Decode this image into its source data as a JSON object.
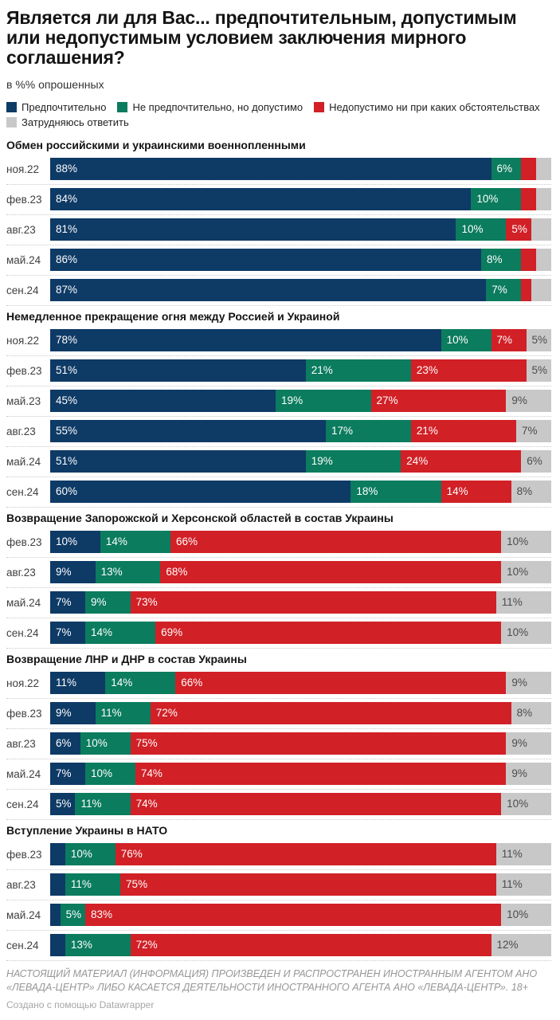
{
  "header": {
    "title": "Является ли для Вас... предпочтительным, допустимым или недопустимым условием заключения мирного соглашения?",
    "subtitle": "в %% опрошенных"
  },
  "legend": {
    "items": [
      {
        "key": "preferable",
        "label": "Предпочтительно",
        "color": "#0e3a66"
      },
      {
        "key": "acceptable",
        "label": "Не предпочтительно, но допустимо",
        "color": "#0b7c5e"
      },
      {
        "key": "unacceptable",
        "label": "Недопустимо ни при каких обстоятельствах",
        "color": "#d12026"
      },
      {
        "key": "dont-know",
        "label": "Затрудняюсь ответить",
        "color": "#c8c8c8"
      }
    ]
  },
  "chart_data": {
    "type": "bar",
    "variant": "horizontal-stacked-100",
    "unit": "%",
    "xlim": [
      0,
      100
    ],
    "grid": "dotted-row-separators",
    "legend_position": "top",
    "label_threshold_pct": 5,
    "series_names": [
      "Предпочтительно",
      "Не предпочтительно, но допустимо",
      "Недопустимо ни при каких обстоятельствах",
      "Затрудняюсь ответить"
    ],
    "series_keys": [
      "preferable",
      "acceptable",
      "unacceptable",
      "dont-know"
    ],
    "series_colors": [
      "#0e3a66",
      "#0b7c5e",
      "#d12026",
      "#c8c8c8"
    ],
    "groups": [
      {
        "title": "Обмен российскими и украинскими военнопленными",
        "rows": [
          {
            "label": "ноя.22",
            "values": [
              88,
              6,
              3,
              3
            ]
          },
          {
            "label": "фев.23",
            "values": [
              84,
              10,
              3,
              3
            ]
          },
          {
            "label": "авг.23",
            "values": [
              81,
              10,
              5,
              4
            ]
          },
          {
            "label": "май.24",
            "values": [
              86,
              8,
              3,
              3
            ]
          },
          {
            "label": "сен.24",
            "values": [
              87,
              7,
              2,
              4
            ]
          }
        ]
      },
      {
        "title": "Немедленное прекращение огня между Россией и Украиной",
        "rows": [
          {
            "label": "ноя.22",
            "values": [
              78,
              10,
              7,
              5
            ]
          },
          {
            "label": "фев.23",
            "values": [
              51,
              21,
              23,
              5
            ]
          },
          {
            "label": "май.23",
            "values": [
              45,
              19,
              27,
              9
            ]
          },
          {
            "label": "авг.23",
            "values": [
              55,
              17,
              21,
              7
            ]
          },
          {
            "label": "май.24",
            "values": [
              51,
              19,
              24,
              6
            ]
          },
          {
            "label": "сен.24",
            "values": [
              60,
              18,
              14,
              8
            ]
          }
        ]
      },
      {
        "title": "Возвращение Запорожской и Херсонской областей в состав Украины",
        "rows": [
          {
            "label": "фев.23",
            "values": [
              10,
              14,
              66,
              10
            ]
          },
          {
            "label": "авг.23",
            "values": [
              9,
              13,
              68,
              10
            ]
          },
          {
            "label": "май.24",
            "values": [
              7,
              9,
              73,
              11
            ]
          },
          {
            "label": "сен.24",
            "values": [
              7,
              14,
              69,
              10
            ]
          }
        ]
      },
      {
        "title": "Возвращение ЛНР и ДНР в состав Украины",
        "rows": [
          {
            "label": "ноя.22",
            "values": [
              11,
              14,
              66,
              9
            ]
          },
          {
            "label": "фев.23",
            "values": [
              9,
              11,
              72,
              8
            ]
          },
          {
            "label": "авг.23",
            "values": [
              6,
              10,
              75,
              9
            ]
          },
          {
            "label": "май.24",
            "values": [
              7,
              10,
              74,
              9
            ]
          },
          {
            "label": "сен.24",
            "values": [
              5,
              11,
              74,
              10
            ]
          }
        ]
      },
      {
        "title": "Вступление Украины в НАТО",
        "rows": [
          {
            "label": "фев.23",
            "values": [
              3,
              10,
              76,
              11
            ]
          },
          {
            "label": "авг.23",
            "values": [
              3,
              11,
              75,
              11
            ]
          },
          {
            "label": "май.24",
            "values": [
              2,
              5,
              83,
              10
            ]
          },
          {
            "label": "сен.24",
            "values": [
              3,
              13,
              72,
              12
            ]
          }
        ]
      }
    ]
  },
  "footer": {
    "disclaimer": "НАСТОЯЩИЙ МАТЕРИАЛ (ИНФОРМАЦИЯ) ПРОИЗВЕДЕН И РАСПРОСТРАНЕН ИНОСТРАННЫМ АГЕНТОМ АНО «ЛЕВАДА-ЦЕНТР» ЛИБО КАСАЕТСЯ ДЕЯТЕЛЬНОСТИ ИНОСТРАННОГО АГЕНТА АНО «ЛЕВАДА-ЦЕНТР». 18+",
    "credit": "Создано с помощью Datawrapper"
  }
}
